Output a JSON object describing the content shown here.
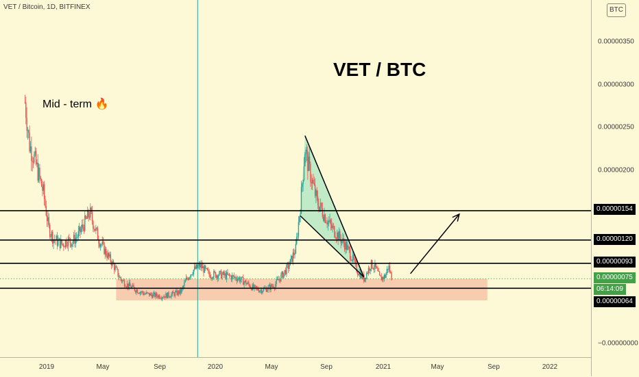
{
  "header": {
    "symbol": "VET / Bitcoin, 1D, BITFINEX"
  },
  "currency_badge": "BTC",
  "annotations": {
    "main_title": "VET / BTC",
    "mid_term": "Mid - term 🔥"
  },
  "price_axis": {
    "labels": [
      "0.00000350",
      "0.00000300",
      "0.00000250",
      "0.00000200",
      "−0.00000000"
    ]
  },
  "time_axis": {
    "labels": [
      "2019",
      "May",
      "Sep",
      "2020",
      "May",
      "Sep",
      "2021",
      "May",
      "Sep",
      "2022"
    ]
  },
  "price_tags": {
    "level_154": "0.00000154",
    "level_120": "0.00000120",
    "level_093": "0.00000093",
    "last_price": "0.00000075",
    "countdown": "06:14:09",
    "level_064": "0.00000064"
  },
  "colors": {
    "background": "#fdf8d5",
    "support_zone": "#f7c4a8",
    "wedge": "#8fe0bc",
    "candle_up": "#26a69a",
    "candle_down": "#ef5350",
    "last_price": "#43a047"
  },
  "chart_data": {
    "type": "candlestick",
    "symbol": "VET / Bitcoin",
    "interval": "1D",
    "exchange": "BITFINEX",
    "y_unit": "BTC",
    "ylim": [
      -2e-07,
      3.9e-06
    ],
    "xlim": [
      "2018-11-15",
      "2022-04-20"
    ],
    "close_path": [
      [
        "2018-11-15",
        2.8e-06
      ],
      [
        "2018-11-25",
        2.3e-06
      ],
      [
        "2018-12-05",
        2.15e-06
      ],
      [
        "2018-12-15",
        1.95e-06
      ],
      [
        "2018-12-25",
        1.75e-06
      ],
      [
        "2019-01-05",
        1.35e-06
      ],
      [
        "2019-01-15",
        1.22e-06
      ],
      [
        "2019-01-25",
        1.18e-06
      ],
      [
        "2019-02-05",
        1.15e-06
      ],
      [
        "2019-02-15",
        1.2e-06
      ],
      [
        "2019-02-25",
        1.18e-06
      ],
      [
        "2019-03-10",
        1.25e-06
      ],
      [
        "2019-03-25",
        1.4e-06
      ],
      [
        "2019-04-05",
        1.52e-06
      ],
      [
        "2019-04-15",
        1.35e-06
      ],
      [
        "2019-04-25",
        1.2e-06
      ],
      [
        "2019-05-10",
        1.05e-06
      ],
      [
        "2019-05-25",
        9.2e-07
      ],
      [
        "2019-06-10",
        7.5e-07
      ],
      [
        "2019-06-25",
        6.8e-07
      ],
      [
        "2019-07-15",
        6.2e-07
      ],
      [
        "2019-08-01",
        5.8e-07
      ],
      [
        "2019-08-20",
        5.6e-07
      ],
      [
        "2019-09-10",
        5.5e-07
      ],
      [
        "2019-10-01",
        5.7e-07
      ],
      [
        "2019-10-20",
        6e-07
      ],
      [
        "2019-11-01",
        7.5e-07
      ],
      [
        "2019-11-15",
        8.5e-07
      ],
      [
        "2019-12-01",
        9e-07
      ],
      [
        "2019-12-20",
        8e-07
      ],
      [
        "2020-01-10",
        8e-07
      ],
      [
        "2020-02-01",
        7.8e-07
      ],
      [
        "2020-02-20",
        7.6e-07
      ],
      [
        "2020-03-10",
        7e-07
      ],
      [
        "2020-03-25",
        6.4e-07
      ],
      [
        "2020-04-10",
        6.2e-07
      ],
      [
        "2020-04-25",
        6.4e-07
      ],
      [
        "2020-05-10",
        6.8e-07
      ],
      [
        "2020-05-25",
        7.8e-07
      ],
      [
        "2020-06-10",
        9e-07
      ],
      [
        "2020-06-25",
        1.1e-06
      ],
      [
        "2020-07-05",
        1.6e-06
      ],
      [
        "2020-07-15",
        2.25e-06
      ],
      [
        "2020-07-25",
        2e-06
      ],
      [
        "2020-08-10",
        1.65e-06
      ],
      [
        "2020-08-25",
        1.5e-06
      ],
      [
        "2020-09-10",
        1.35e-06
      ],
      [
        "2020-09-25",
        1.25e-06
      ],
      [
        "2020-10-10",
        1.15e-06
      ],
      [
        "2020-10-25",
        1e-06
      ],
      [
        "2020-11-05",
        8.5e-07
      ],
      [
        "2020-11-20",
        7.5e-07
      ],
      [
        "2020-12-05",
        9.2e-07
      ],
      [
        "2020-12-15",
        8.8e-07
      ],
      [
        "2020-12-25",
        7.5e-07
      ],
      [
        "2021-01-05",
        7.8e-07
      ],
      [
        "2021-01-12",
        9e-07
      ],
      [
        "2021-01-20",
        7.5e-07
      ]
    ],
    "horizontal_levels": [
      1.54e-06,
      1.2e-06,
      9.3e-07,
      6.4e-07
    ],
    "support_zone": {
      "from": "2019-06-01",
      "to": "2021-08-15",
      "low": 5e-07,
      "high": 7.5e-07
    },
    "wedge": {
      "upper": [
        [
          "2020-07-15",
          2.41e-06
        ],
        [
          "2020-11-20",
          7.7e-07
        ]
      ],
      "lower": [
        [
          "2020-07-05",
          1.48e-06
        ],
        [
          "2020-11-20",
          7.7e-07
        ]
      ]
    },
    "projection_arrow": [
      [
        "2021-03-01",
        8.1e-07
      ],
      [
        "2021-06-15",
        1.5e-06
      ]
    ],
    "vertical_marker": "2019-11-25",
    "last_price": 7.5e-07,
    "grid": false,
    "legend": false
  }
}
